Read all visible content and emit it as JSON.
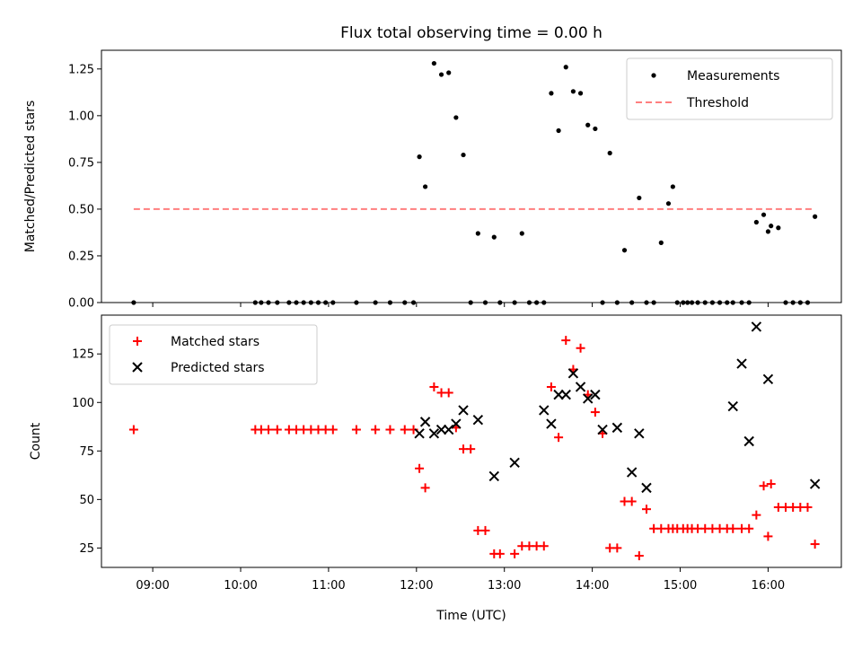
{
  "chart_data": [
    {
      "type": "scatter",
      "title": "Flux total observing time = 0.00 h",
      "xlabel": "",
      "ylabel": "Matched/Predicted stars",
      "xlim": [
        "08:25",
        "16:50"
      ],
      "ylim": [
        0,
        1.35
      ],
      "yticks": [
        "0.00",
        "0.25",
        "0.50",
        "0.75",
        "1.00",
        "1.25"
      ],
      "legend_position": "top-right",
      "series": [
        {
          "name": "Measurements",
          "marker": "dot",
          "color": "#000000",
          "x": [
            "08:47",
            "10:10",
            "10:14",
            "10:19",
            "10:25",
            "10:33",
            "10:38",
            "10:43",
            "10:48",
            "10:53",
            "10:58",
            "11:03",
            "11:19",
            "11:32",
            "11:42",
            "11:52",
            "11:58",
            "12:02",
            "12:06",
            "12:12",
            "12:17",
            "12:22",
            "12:27",
            "12:32",
            "12:37",
            "12:42",
            "12:47",
            "12:53",
            "12:57",
            "13:07",
            "13:12",
            "13:17",
            "13:22",
            "13:27",
            "13:32",
            "13:37",
            "13:42",
            "13:47",
            "13:52",
            "13:57",
            "14:02",
            "14:07",
            "14:12",
            "14:17",
            "14:22",
            "14:27",
            "14:32",
            "14:37",
            "14:42",
            "14:47",
            "14:52",
            "14:55",
            "14:58",
            "15:02",
            "15:05",
            "15:08",
            "15:12",
            "15:17",
            "15:22",
            "15:27",
            "15:32",
            "15:36",
            "15:42",
            "15:47",
            "15:52",
            "15:57",
            "16:00",
            "16:02",
            "16:07",
            "16:12",
            "16:17",
            "16:22",
            "16:27",
            "16:32"
          ],
          "y": [
            0.0,
            0.0,
            0.0,
            0.0,
            0.0,
            0.0,
            0.0,
            0.0,
            0.0,
            0.0,
            0.0,
            0.0,
            0.0,
            0.0,
            0.0,
            0.0,
            0.0,
            0.78,
            0.62,
            1.28,
            1.22,
            1.23,
            0.99,
            0.79,
            0.0,
            0.37,
            0.0,
            0.35,
            0.0,
            0.0,
            0.37,
            0.0,
            0.0,
            0.0,
            1.12,
            0.92,
            1.26,
            1.13,
            1.12,
            0.95,
            0.93,
            0.0,
            0.8,
            0.0,
            0.28,
            0.0,
            0.56,
            0.0,
            0.0,
            0.32,
            0.53,
            0.62,
            0.0,
            0.0,
            0.0,
            0.0,
            0.0,
            0.0,
            0.0,
            0.0,
            0.0,
            0.0,
            0.0,
            0.0,
            0.43,
            0.47,
            0.38,
            0.41,
            0.4,
            0.0,
            0.0,
            0.0,
            0.0,
            0.46
          ]
        },
        {
          "name": "Threshold",
          "line": "dashed",
          "color": "#ff7f7f",
          "x": [
            "08:47",
            "16:32"
          ],
          "y": [
            0.5,
            0.5
          ]
        }
      ]
    },
    {
      "type": "scatter",
      "title": "",
      "xlabel": "Time (UTC)",
      "ylabel": "Count",
      "xlim": [
        "08:25",
        "16:50"
      ],
      "ylim": [
        15,
        145
      ],
      "yticks": [
        "25",
        "50",
        "75",
        "100",
        "125"
      ],
      "xticks": [
        "09:00",
        "10:00",
        "11:00",
        "12:00",
        "13:00",
        "14:00",
        "15:00",
        "16:00"
      ],
      "legend_position": "top-left",
      "series": [
        {
          "name": "Matched stars",
          "marker": "plus",
          "color": "#ff0000",
          "x": [
            "08:47",
            "10:10",
            "10:14",
            "10:19",
            "10:25",
            "10:33",
            "10:38",
            "10:43",
            "10:48",
            "10:53",
            "10:58",
            "11:03",
            "11:19",
            "11:32",
            "11:42",
            "11:52",
            "11:58",
            "12:02",
            "12:06",
            "12:12",
            "12:17",
            "12:22",
            "12:27",
            "12:32",
            "12:37",
            "12:42",
            "12:47",
            "12:53",
            "12:57",
            "13:07",
            "13:12",
            "13:17",
            "13:22",
            "13:27",
            "13:32",
            "13:37",
            "13:42",
            "13:47",
            "13:52",
            "13:57",
            "14:02",
            "14:07",
            "14:12",
            "14:17",
            "14:22",
            "14:27",
            "14:32",
            "14:37",
            "14:42",
            "14:47",
            "14:52",
            "14:55",
            "14:58",
            "15:02",
            "15:05",
            "15:08",
            "15:12",
            "15:17",
            "15:22",
            "15:27",
            "15:32",
            "15:36",
            "15:42",
            "15:47",
            "15:52",
            "15:57",
            "16:00",
            "16:02",
            "16:07",
            "16:12",
            "16:17",
            "16:22",
            "16:27",
            "16:32"
          ],
          "y": [
            86,
            86,
            86,
            86,
            86,
            86,
            86,
            86,
            86,
            86,
            86,
            86,
            86,
            86,
            86,
            86,
            86,
            66,
            56,
            108,
            105,
            105,
            87,
            76,
            76,
            34,
            34,
            22,
            22,
            22,
            26,
            26,
            26,
            26,
            108,
            82,
            132,
            117,
            128,
            104,
            95,
            84,
            25,
            25,
            49,
            49,
            21,
            45,
            35,
            35,
            35,
            35,
            35,
            35,
            35,
            35,
            35,
            35,
            35,
            35,
            35,
            35,
            35,
            35,
            42,
            57,
            31,
            58,
            46,
            46,
            46,
            46,
            46,
            27
          ]
        },
        {
          "name": "Predicted stars",
          "marker": "x",
          "color": "#000000",
          "x": [
            "12:02",
            "12:06",
            "12:12",
            "12:17",
            "12:22",
            "12:27",
            "12:32",
            "12:42",
            "12:53",
            "13:07",
            "13:27",
            "13:32",
            "13:37",
            "13:42",
            "13:47",
            "13:52",
            "13:57",
            "14:02",
            "14:07",
            "14:17",
            "14:27",
            "14:32",
            "14:37",
            "15:36",
            "15:42",
            "15:47",
            "15:52",
            "16:00",
            "16:32"
          ],
          "y": [
            84,
            90,
            84,
            86,
            86,
            89,
            96,
            91,
            62,
            69,
            96,
            89,
            104,
            104,
            115,
            108,
            102,
            104,
            86,
            87,
            64,
            84,
            56,
            98,
            120,
            80,
            139,
            112,
            58
          ]
        }
      ]
    }
  ]
}
